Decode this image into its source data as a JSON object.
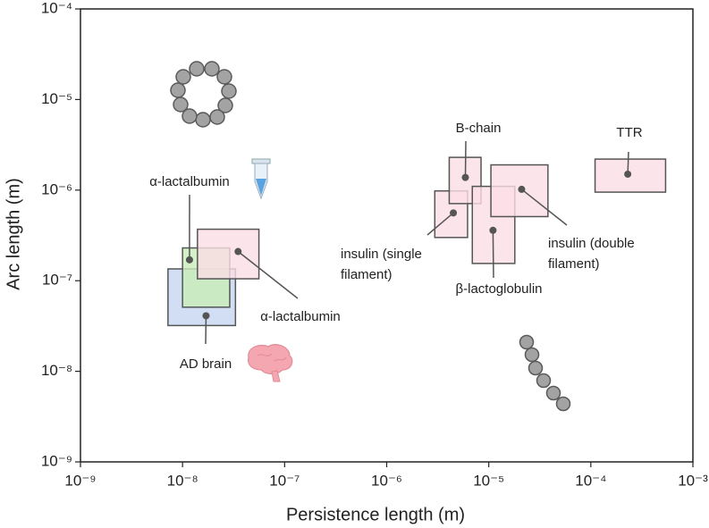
{
  "chart_data": {
    "type": "range-box",
    "xlabel": "Persistence length (m)",
    "ylabel": "Arc length (m)",
    "xscale": "log",
    "yscale": "log",
    "xlim": [
      1e-09,
      0.001
    ],
    "ylim": [
      1e-09,
      0.0001
    ],
    "xticks": [
      {
        "value": 1e-09,
        "label": "10⁻⁹"
      },
      {
        "value": 1e-08,
        "label": "10⁻⁸"
      },
      {
        "value": 1e-07,
        "label": "10⁻⁷"
      },
      {
        "value": 1e-06,
        "label": "10⁻⁶"
      },
      {
        "value": 1e-05,
        "label": "10⁻⁵"
      },
      {
        "value": 0.0001,
        "label": "10⁻⁴"
      },
      {
        "value": 0.001,
        "label": "10⁻³"
      }
    ],
    "yticks": [
      {
        "value": 1e-09,
        "label": "10⁻⁹"
      },
      {
        "value": 1e-08,
        "label": "10⁻⁸"
      },
      {
        "value": 1e-07,
        "label": "10⁻⁷"
      },
      {
        "value": 1e-06,
        "label": "10⁻⁶"
      },
      {
        "value": 1e-05,
        "label": "10⁻⁵"
      },
      {
        "value": 0.0001,
        "label": "10⁻⁴"
      }
    ],
    "items": [
      {
        "label": [
          "AD brain"
        ],
        "color": "#c6d6f0",
        "xmin": 7.2e-09,
        "xmax": 3.3e-08,
        "ymin": 3.2e-08,
        "ymax": 1.35e-07,
        "x": 1.7e-08,
        "y": 4.1e-08
      },
      {
        "label": [
          "α-lactalbumin"
        ],
        "color": "#c8ecb8",
        "xmin": 1e-08,
        "xmax": 2.9e-08,
        "ymin": 5.1e-08,
        "ymax": 2.3e-07,
        "x": 1.17e-08,
        "y": 1.7e-07
      },
      {
        "label": [
          "α-lactalbumin"
        ],
        "color": "#fbdde6",
        "xmin": 1.4e-08,
        "xmax": 5.6e-08,
        "ymin": 1.05e-07,
        "ymax": 3.7e-07,
        "x": 3.5e-08,
        "y": 2.1e-07
      },
      {
        "label": [
          "insulin (single",
          "filament)"
        ],
        "color": "#fbdde6",
        "xmin": 2.96e-06,
        "xmax": 6.2e-06,
        "ymin": 3e-07,
        "ymax": 9.8e-07,
        "x": 4.5e-06,
        "y": 5.6e-07
      },
      {
        "label": [
          "B-chain"
        ],
        "color": "#fbdde6",
        "xmin": 4.1e-06,
        "xmax": 8.4e-06,
        "ymin": 7.1e-07,
        "ymax": 2.3e-06,
        "x": 5.9e-06,
        "y": 1.38e-06
      },
      {
        "label": [
          "β-lactoglobulin"
        ],
        "color": "#fbdde6",
        "xmin": 6.9e-06,
        "xmax": 1.8e-05,
        "ymin": 1.55e-07,
        "ymax": 1.1e-06,
        "x": 1.1e-05,
        "y": 3.6e-07
      },
      {
        "label": [
          "insulin (double",
          "filament)"
        ],
        "color": "#fbdde6",
        "xmin": 1.05e-05,
        "xmax": 3.8e-05,
        "ymin": 5.1e-07,
        "ymax": 1.9e-06,
        "x": 2.1e-05,
        "y": 1.02e-06
      },
      {
        "label": [
          "TTR"
        ],
        "color": "#fbdde6",
        "xmin": 0.00011,
        "xmax": 0.00054,
        "ymin": 9.5e-07,
        "ymax": 2.2e-06,
        "x": 0.00023,
        "y": 1.5e-06
      }
    ]
  }
}
